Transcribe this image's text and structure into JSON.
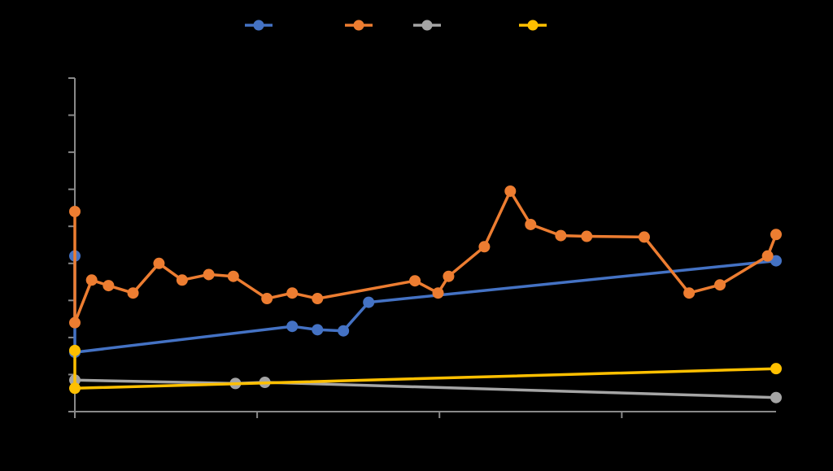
{
  "chart_data": {
    "type": "line",
    "title": "",
    "xlabel": "",
    "ylabel": "",
    "xlim": [
      0,
      100
    ],
    "ylim": [
      0,
      90
    ],
    "x_ticks": [
      0,
      26,
      52,
      78
    ],
    "y_ticks": [
      0,
      10,
      20,
      30,
      40,
      50,
      60,
      70,
      80,
      90
    ],
    "grid": false,
    "legend": "top-center",
    "background": "#000000",
    "axis_color": "#898989",
    "series": [
      {
        "color": "#4472C4",
        "points": [
          [
            0,
            42
          ],
          [
            0,
            16
          ],
          [
            31,
            23
          ],
          [
            34.6,
            22.1
          ],
          [
            38.3,
            21.8
          ],
          [
            41.9,
            29.5
          ],
          [
            100,
            40.7
          ]
        ]
      },
      {
        "color": "#ED7D31",
        "points": [
          [
            0,
            54
          ],
          [
            0,
            24
          ],
          [
            2.4,
            35.5
          ],
          [
            4.8,
            34
          ],
          [
            8.3,
            32
          ],
          [
            12,
            40
          ],
          [
            15.3,
            35.5
          ],
          [
            19.1,
            37
          ],
          [
            22.6,
            36.5
          ],
          [
            27.4,
            30.5
          ],
          [
            31,
            32
          ],
          [
            34.6,
            30.5
          ],
          [
            48.5,
            35.3
          ],
          [
            51.8,
            32
          ],
          [
            53.3,
            36.5
          ],
          [
            58.4,
            44.5
          ],
          [
            62.1,
            59.5
          ],
          [
            65,
            50.5
          ],
          [
            69.3,
            47.5
          ],
          [
            73,
            47.3
          ],
          [
            81.2,
            47.1
          ],
          [
            87.6,
            32
          ],
          [
            92,
            34.2
          ],
          [
            98.8,
            42
          ],
          [
            100,
            47.8
          ]
        ]
      },
      {
        "color": "#A5A5A5",
        "points": [
          [
            0,
            8.5
          ],
          [
            22.9,
            7.6
          ],
          [
            27.1,
            7.9
          ],
          [
            100,
            3.8
          ]
        ]
      },
      {
        "color": "#FFC000",
        "points": [
          [
            0,
            16.5
          ],
          [
            0,
            6.3
          ],
          [
            100,
            11.6
          ]
        ]
      }
    ]
  }
}
